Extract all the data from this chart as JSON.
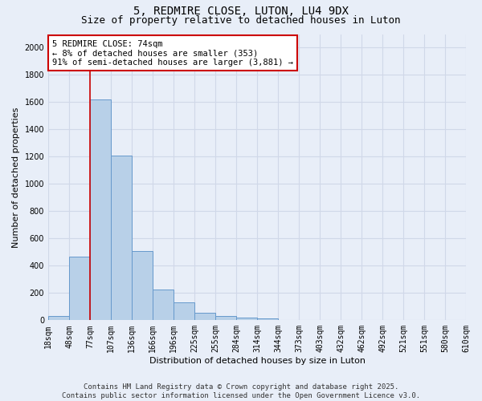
{
  "title": "5, REDMIRE CLOSE, LUTON, LU4 9DX",
  "subtitle": "Size of property relative to detached houses in Luton",
  "xlabel": "Distribution of detached houses by size in Luton",
  "ylabel": "Number of detached properties",
  "bar_values": [
    30,
    465,
    1620,
    1210,
    510,
    225,
    130,
    55,
    30,
    20,
    15,
    0,
    0,
    0,
    0,
    0,
    0,
    0,
    0,
    0
  ],
  "categories": [
    "18sqm",
    "48sqm",
    "77sqm",
    "107sqm",
    "136sqm",
    "166sqm",
    "196sqm",
    "225sqm",
    "255sqm",
    "284sqm",
    "314sqm",
    "344sqm",
    "373sqm",
    "403sqm",
    "432sqm",
    "462sqm",
    "492sqm",
    "521sqm",
    "551sqm",
    "580sqm",
    "610sqm"
  ],
  "bar_color": "#b8d0e8",
  "bar_edge_color": "#6699cc",
  "grid_color": "#d0d8e8",
  "background_color": "#e8eef8",
  "red_line_x": 2,
  "red_line_color": "#cc0000",
  "annotation_text": "5 REDMIRE CLOSE: 74sqm\n← 8% of detached houses are smaller (353)\n91% of semi-detached houses are larger (3,881) →",
  "annotation_box_color": "#ffffff",
  "annotation_box_edge": "#cc0000",
  "ylim": [
    0,
    2100
  ],
  "yticks": [
    0,
    200,
    400,
    600,
    800,
    1000,
    1200,
    1400,
    1600,
    1800,
    2000
  ],
  "footer_line1": "Contains HM Land Registry data © Crown copyright and database right 2025.",
  "footer_line2": "Contains public sector information licensed under the Open Government Licence v3.0.",
  "title_fontsize": 10,
  "subtitle_fontsize": 9,
  "axis_label_fontsize": 8,
  "tick_fontsize": 7,
  "annotation_fontsize": 7.5,
  "footer_fontsize": 6.5
}
